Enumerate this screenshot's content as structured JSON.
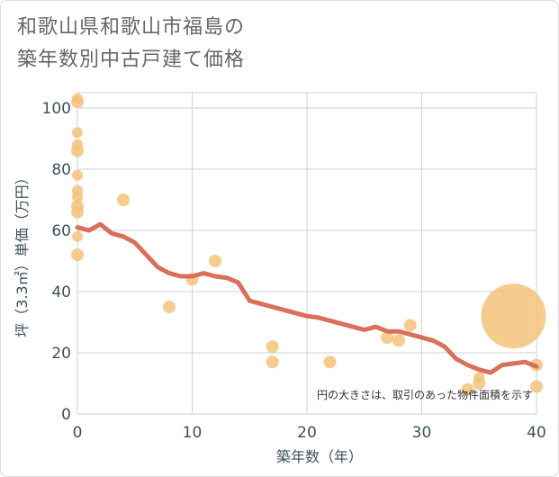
{
  "chart_data": {
    "type": "scatter+line",
    "title": "和歌山県和歌山市福島の築年数別中古戸建て価格",
    "title_lines": [
      "和歌山県和歌山市福島の",
      "築年数別中古戸建て価格"
    ],
    "xlabel": "築年数（年）",
    "ylabel": "坪（3.3㎡）単価（万円）",
    "xlim": [
      0,
      40
    ],
    "ylim": [
      0,
      105
    ],
    "xticks": [
      0,
      10,
      20,
      30,
      40
    ],
    "yticks": [
      0,
      20,
      40,
      60,
      80,
      100
    ],
    "note": "円の大きさは、取引のあった物件面積を示す",
    "colors": {
      "scatter": "#f5c27a",
      "line": "#d9705a",
      "grid": "#c9d3de",
      "plot_border": "#c9d3de"
    },
    "scatter": [
      {
        "x": 0,
        "y": 103,
        "size": 6
      },
      {
        "x": 0,
        "y": 102,
        "size": 7
      },
      {
        "x": 0,
        "y": 92,
        "size": 6
      },
      {
        "x": 0,
        "y": 88,
        "size": 6
      },
      {
        "x": 0,
        "y": 86,
        "size": 7
      },
      {
        "x": 0,
        "y": 78,
        "size": 6
      },
      {
        "x": 0,
        "y": 73,
        "size": 6
      },
      {
        "x": 0,
        "y": 71,
        "size": 6
      },
      {
        "x": 0,
        "y": 68,
        "size": 7
      },
      {
        "x": 0,
        "y": 66,
        "size": 7
      },
      {
        "x": 0,
        "y": 58,
        "size": 6
      },
      {
        "x": 0,
        "y": 52,
        "size": 7
      },
      {
        "x": 4,
        "y": 70,
        "size": 7
      },
      {
        "x": 8,
        "y": 35,
        "size": 7
      },
      {
        "x": 10,
        "y": 44,
        "size": 7
      },
      {
        "x": 12,
        "y": 50,
        "size": 7
      },
      {
        "x": 17,
        "y": 22,
        "size": 7
      },
      {
        "x": 17,
        "y": 17,
        "size": 7
      },
      {
        "x": 22,
        "y": 17,
        "size": 7
      },
      {
        "x": 27,
        "y": 25,
        "size": 7
      },
      {
        "x": 28,
        "y": 24,
        "size": 7
      },
      {
        "x": 29,
        "y": 29,
        "size": 7
      },
      {
        "x": 34,
        "y": 8,
        "size": 7
      },
      {
        "x": 35,
        "y": 10,
        "size": 7
      },
      {
        "x": 35,
        "y": 12,
        "size": 6
      },
      {
        "x": 38,
        "y": 32,
        "size": 36
      },
      {
        "x": 40,
        "y": 16,
        "size": 7
      },
      {
        "x": 40,
        "y": 9,
        "size": 7
      }
    ],
    "line": {
      "x": [
        0,
        1,
        2,
        3,
        4,
        5,
        6,
        7,
        8,
        9,
        10,
        11,
        12,
        13,
        14,
        15,
        16,
        17,
        18,
        19,
        20,
        21,
        22,
        23,
        24,
        25,
        26,
        27,
        28,
        29,
        30,
        31,
        32,
        33,
        34,
        35,
        36,
        37,
        38,
        39,
        40
      ],
      "y": [
        61,
        60,
        62,
        59,
        58,
        56,
        52,
        48,
        46,
        45,
        45,
        46,
        45,
        44.5,
        43,
        37,
        36,
        35,
        34,
        33,
        32,
        31.5,
        30.5,
        29.5,
        28.5,
        27.5,
        28.5,
        27,
        27,
        26,
        25,
        24,
        22,
        18,
        16,
        14.5,
        13.5,
        16,
        16.5,
        17,
        15.5
      ]
    }
  }
}
